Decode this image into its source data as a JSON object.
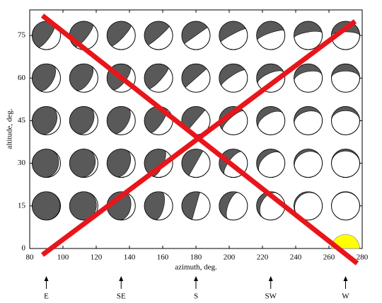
{
  "chart_data": {
    "type": "scatter",
    "xlabel": "azimuth, deg.",
    "ylabel": "altitude, deg.",
    "xlim": [
      80,
      280
    ],
    "ylim": [
      0,
      84
    ],
    "xticks": [
      80,
      100,
      120,
      140,
      160,
      180,
      200,
      220,
      240,
      260,
      280
    ],
    "yticks": [
      0,
      15,
      30,
      45,
      60,
      75
    ],
    "series": [
      {
        "color": "#ffffff",
        "x": [
          90,
          112.5,
          135,
          157.5,
          180,
          202.5,
          225,
          247.5,
          270,
          90,
          112.5,
          135,
          157.5,
          180,
          202.5,
          225,
          247.5,
          270,
          90,
          112.5,
          135,
          157.5,
          180,
          202.5,
          225,
          247.5,
          270,
          90,
          112.5,
          135,
          157.5,
          180,
          202.5,
          225,
          247.5,
          270,
          90,
          112.5,
          135,
          157.5,
          180,
          202.5,
          225,
          247.5,
          270
        ],
        "values": [
          15,
          15,
          15,
          15,
          15,
          15,
          15,
          15,
          15,
          30,
          30,
          30,
          30,
          30,
          30,
          30,
          30,
          30,
          45,
          45,
          45,
          45,
          45,
          45,
          45,
          45,
          45,
          60,
          60,
          60,
          60,
          60,
          60,
          60,
          60,
          60,
          75,
          75,
          75,
          75,
          75,
          75,
          75,
          75,
          75
        ]
      },
      {
        "color": "#ffff00",
        "x": [
          270
        ],
        "values": [
          0
        ]
      }
    ],
    "compass": {
      "labels": [
        "E",
        "SE",
        "S",
        "SW",
        "W"
      ],
      "x": [
        90,
        135,
        180,
        225,
        270
      ]
    }
  }
}
